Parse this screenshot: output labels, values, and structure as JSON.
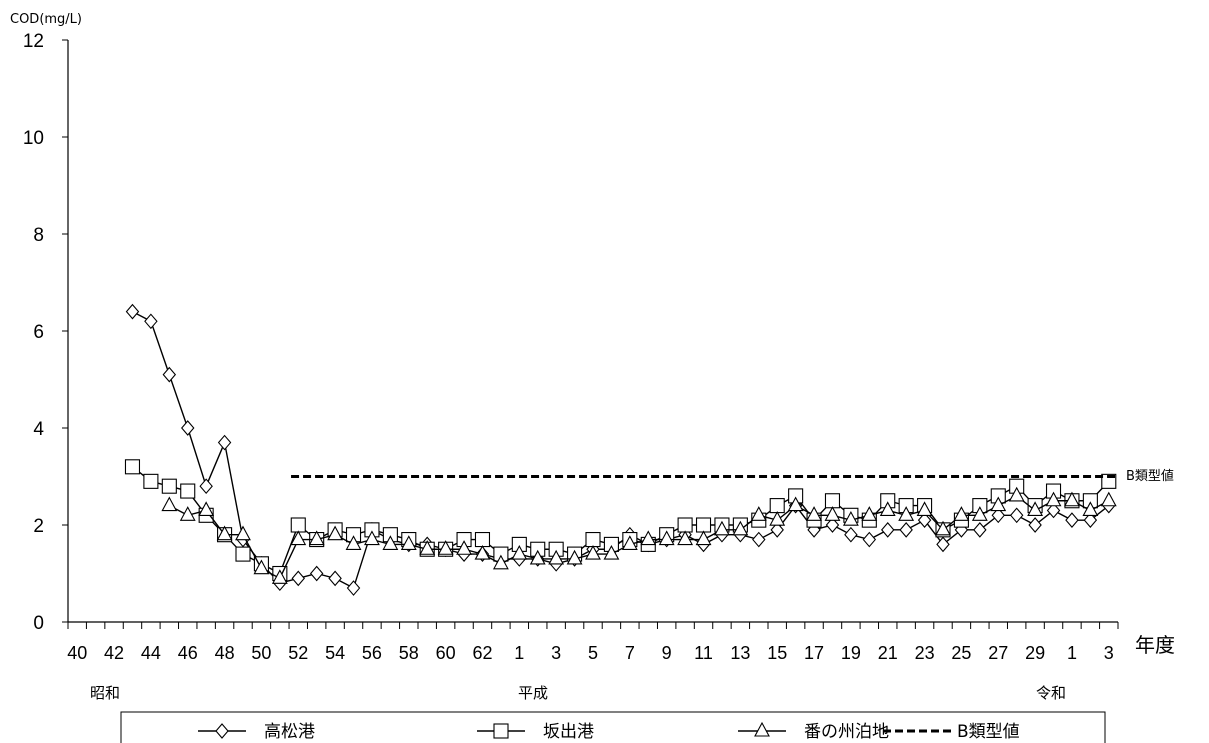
{
  "chart_data": {
    "type": "line",
    "ylabel": "COD(mg/L)",
    "xunit": "年度",
    "ylim": [
      0,
      12
    ],
    "yticks": [
      0,
      2,
      4,
      6,
      8,
      10,
      12
    ],
    "grid": false,
    "legend_position": "bottom",
    "x": [
      "40",
      "41",
      "42",
      "43",
      "44",
      "45",
      "46",
      "47",
      "48",
      "49",
      "50",
      "51",
      "52",
      "53",
      "54",
      "55",
      "56",
      "57",
      "58",
      "59",
      "60",
      "61",
      "62",
      "63",
      "1",
      "2",
      "3",
      "4",
      "5",
      "6",
      "7",
      "8",
      "9",
      "10",
      "11",
      "12",
      "13",
      "14",
      "15",
      "16",
      "17",
      "18",
      "19",
      "20",
      "21",
      "22",
      "23",
      "24",
      "25",
      "26",
      "27",
      "28",
      "29",
      "30",
      "1",
      "2",
      "3"
    ],
    "xtick_labels": [
      "40",
      "42",
      "44",
      "46",
      "48",
      "50",
      "52",
      "54",
      "56",
      "58",
      "60",
      "62",
      "1",
      "3",
      "5",
      "7",
      "9",
      "11",
      "13",
      "15",
      "17",
      "19",
      "21",
      "23",
      "25",
      "27",
      "29",
      "1",
      "3"
    ],
    "eras": [
      "昭和",
      "平成",
      "令和"
    ],
    "series": [
      {
        "name": "高松港",
        "marker": "diamond",
        "values": [
          null,
          null,
          null,
          6.4,
          6.2,
          5.1,
          4.0,
          2.8,
          3.7,
          1.7,
          1.2,
          0.8,
          0.9,
          1.0,
          0.9,
          0.7,
          1.9,
          1.7,
          1.6,
          1.6,
          1.5,
          1.4,
          1.4,
          1.3,
          1.3,
          1.3,
          1.2,
          1.3,
          1.5,
          1.5,
          1.8,
          1.6,
          1.7,
          1.8,
          1.6,
          1.8,
          1.8,
          1.7,
          1.9,
          2.4,
          1.9,
          2.0,
          1.8,
          1.7,
          1.9,
          1.9,
          2.1,
          1.6,
          1.9,
          1.9,
          2.2,
          2.2,
          2.0,
          2.3,
          2.1,
          2.1,
          2.4
        ]
      },
      {
        "name": "坂出港",
        "marker": "square",
        "values": [
          null,
          null,
          null,
          3.2,
          2.9,
          2.8,
          2.7,
          2.2,
          1.8,
          1.4,
          1.2,
          1.0,
          2.0,
          1.7,
          1.9,
          1.8,
          1.9,
          1.8,
          1.7,
          1.5,
          1.5,
          1.7,
          1.7,
          1.4,
          1.6,
          1.5,
          1.5,
          1.4,
          1.7,
          1.6,
          1.7,
          1.6,
          1.8,
          2.0,
          2.0,
          2.0,
          2.0,
          2.1,
          2.4,
          2.6,
          2.1,
          2.5,
          2.2,
          2.1,
          2.5,
          2.4,
          2.4,
          1.9,
          2.1,
          2.4,
          2.6,
          2.8,
          2.4,
          2.7,
          2.5,
          2.5,
          2.9
        ]
      },
      {
        "name": "番の州泊地",
        "marker": "triangle",
        "values": [
          null,
          null,
          null,
          null,
          null,
          2.4,
          2.2,
          2.3,
          1.8,
          1.8,
          1.1,
          0.9,
          1.7,
          1.7,
          1.8,
          1.6,
          1.7,
          1.6,
          1.6,
          1.5,
          1.5,
          1.5,
          1.4,
          1.2,
          1.4,
          1.3,
          1.3,
          1.3,
          1.4,
          1.4,
          1.6,
          1.7,
          1.7,
          1.7,
          1.7,
          1.9,
          1.9,
          2.2,
          2.1,
          2.4,
          2.2,
          2.2,
          2.1,
          2.2,
          2.3,
          2.2,
          2.3,
          1.9,
          2.2,
          2.2,
          2.4,
          2.6,
          2.3,
          2.5,
          2.5,
          2.3,
          2.5
        ]
      },
      {
        "name": "B類型値",
        "marker": "none",
        "dashed": true,
        "values": [
          null,
          null,
          null,
          null,
          null,
          null,
          null,
          null,
          null,
          null,
          null,
          null,
          3,
          3,
          3,
          3,
          3,
          3,
          3,
          3,
          3,
          3,
          3,
          3,
          3,
          3,
          3,
          3,
          3,
          3,
          3,
          3,
          3,
          3,
          3,
          3,
          3,
          3,
          3,
          3,
          3,
          3,
          3,
          3,
          3,
          3,
          3,
          3,
          3,
          3,
          3,
          3,
          3,
          3,
          3,
          3,
          3
        ]
      }
    ],
    "standard_label": "B類型値"
  }
}
